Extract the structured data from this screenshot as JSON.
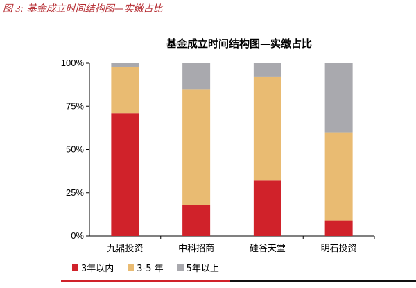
{
  "caption": {
    "label": "图",
    "number": "3:",
    "text": "基金成立时间结构图—实缴占比"
  },
  "colors": {
    "red": "#d0222a",
    "tan": "#e9bb72",
    "gray": "#a9a9ae",
    "accent_red": "#d0222a",
    "accent_black": "#111111"
  },
  "chart_data": {
    "type": "bar",
    "stacked": true,
    "title": "基金成立时间结构图—实缴占比",
    "categories": [
      "九鼎投资",
      "中科招商",
      "硅谷天堂",
      "明石投资"
    ],
    "series": [
      {
        "name": "3年以内",
        "color": "#d0222a",
        "values": [
          71,
          18,
          32,
          9
        ]
      },
      {
        "name": "3-5 年",
        "color": "#e9bb72",
        "values": [
          27,
          67,
          60,
          51
        ]
      },
      {
        "name": "5年以上",
        "color": "#a9a9ae",
        "values": [
          2,
          15,
          8,
          40
        ]
      }
    ],
    "y_ticks": [
      "0%",
      "25%",
      "50%",
      "75%",
      "100%"
    ],
    "ylim": [
      0,
      100
    ],
    "legend_position": "bottom-left",
    "grid": false
  }
}
